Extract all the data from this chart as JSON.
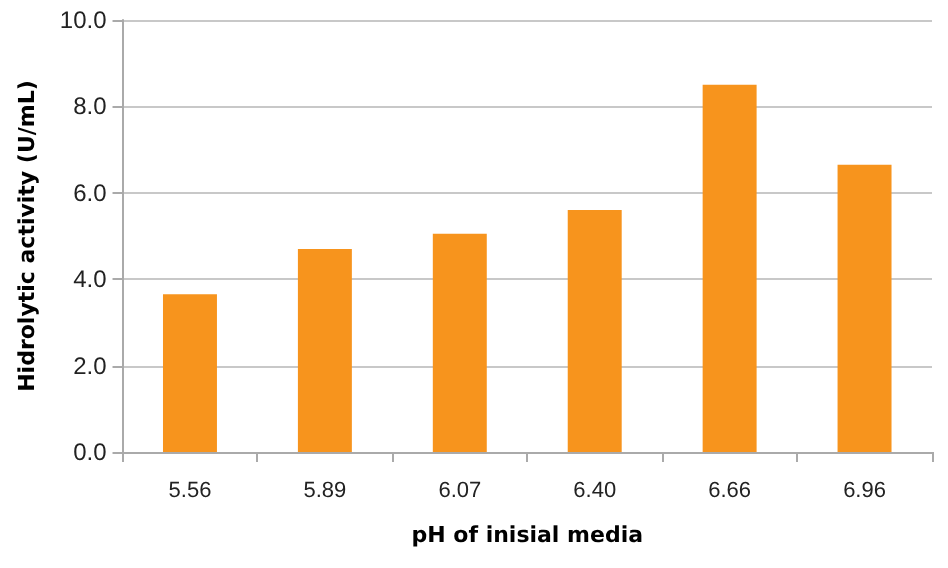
{
  "chart_data": {
    "type": "bar",
    "xlabel": "pH of inisial media",
    "ylabel": "Hidrolytic activity (U/mL)",
    "categories": [
      "5.56",
      "5.89",
      "6.07",
      "6.40",
      "6.66",
      "6.96"
    ],
    "values": [
      3.65,
      4.7,
      5.05,
      5.6,
      8.5,
      6.65
    ],
    "color": "#f7941d",
    "ylim": [
      0,
      10
    ],
    "yticks": [
      {
        "value": 0,
        "label": "0.0"
      },
      {
        "value": 2,
        "label": "2.0"
      },
      {
        "value": 4,
        "label": "4.0"
      },
      {
        "value": 6,
        "label": "6.0"
      },
      {
        "value": 8,
        "label": "8.0"
      },
      {
        "value": 10,
        "label": "10.0"
      }
    ],
    "grid": "y"
  }
}
